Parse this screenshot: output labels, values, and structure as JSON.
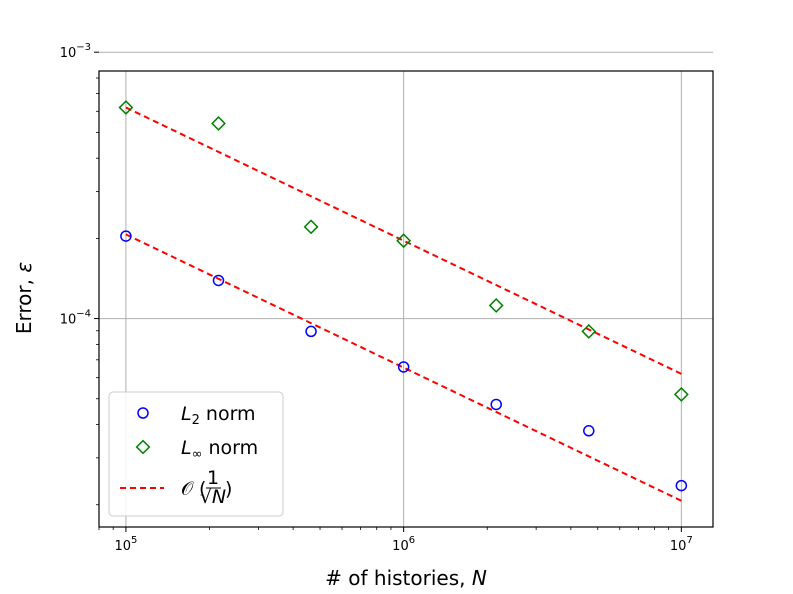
{
  "chart_data": {
    "type": "scatter",
    "xscale": "log",
    "yscale": "log",
    "xlim": [
      80000,
      13000000
    ],
    "ylim": [
      1.65e-05,
      0.00085
    ],
    "xlabel": "# of histories, N",
    "ylabel": "Error, ε",
    "grid": true,
    "legend_position": "lower-left",
    "x_ticks": [
      {
        "value": 100000,
        "base": "10",
        "exp": "5"
      },
      {
        "value": 1000000,
        "base": "10",
        "exp": "6"
      },
      {
        "value": 10000000,
        "base": "10",
        "exp": "7"
      }
    ],
    "y_ticks": [
      {
        "value": 0.0001,
        "base": "10",
        "exp": "−4"
      },
      {
        "value": 0.001,
        "base": "10",
        "exp": "−3"
      }
    ],
    "series": [
      {
        "name": "L₂ norm",
        "label_main": "L",
        "label_sub": "2",
        "label_tail": " norm",
        "marker": "circle",
        "color": "#0000ff",
        "x": [
          100000,
          215443,
          464159,
          1000000,
          2154435,
          4641589,
          10000000
        ],
        "y": [
          0.000204,
          0.000139,
          8.95e-05,
          6.58e-05,
          4.76e-05,
          3.79e-05,
          2.36e-05
        ]
      },
      {
        "name": "L∞ norm",
        "label_main": "L",
        "label_sub": "∞",
        "label_tail": " norm",
        "marker": "diamond",
        "color": "#008000",
        "x": [
          100000,
          215443,
          464159,
          1000000,
          2154435,
          4641589,
          10000000
        ],
        "y": [
          0.00062,
          0.00054,
          0.000221,
          0.000196,
          0.000112,
          8.95e-05,
          5.19e-05
        ]
      },
      {
        "name": "O(1/√N)",
        "label_main": "𝒪",
        "label_num": "1",
        "label_den": "√N",
        "style": "dashed",
        "color": "#ff0000",
        "lines": [
          {
            "x": [
              100000,
              10000000
            ],
            "y": [
              0.00062,
              6.2e-05
            ]
          },
          {
            "x": [
              100000,
              10000000
            ],
            "y": [
              0.000207,
              2.07e-05
            ]
          }
        ]
      }
    ]
  }
}
